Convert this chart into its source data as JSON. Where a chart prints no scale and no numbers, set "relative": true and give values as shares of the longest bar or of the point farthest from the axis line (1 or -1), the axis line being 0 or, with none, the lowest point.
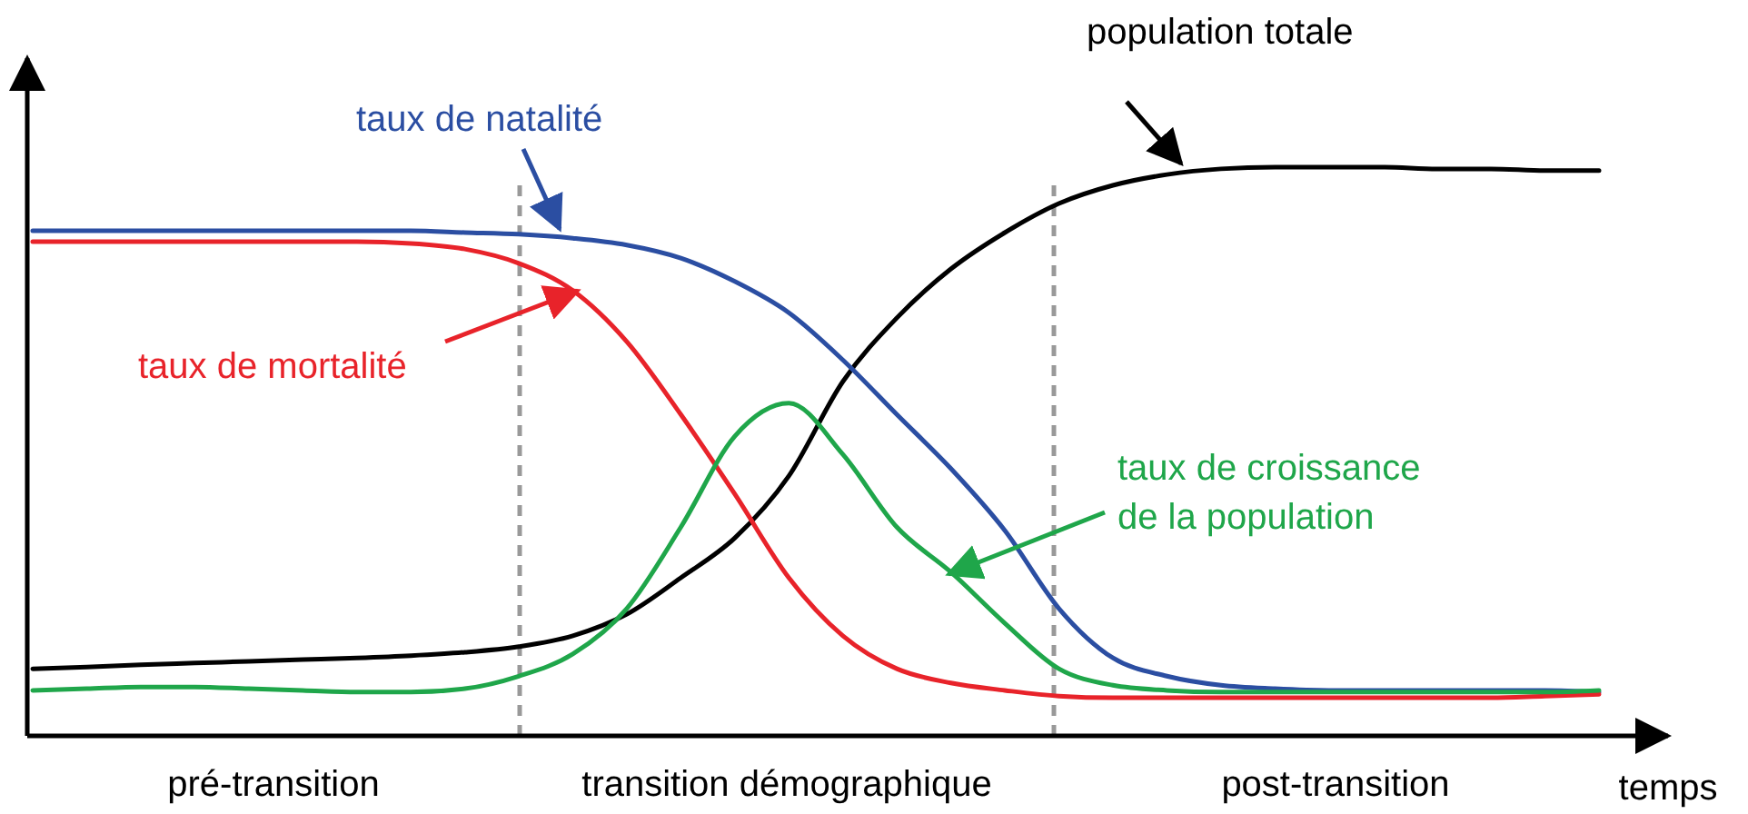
{
  "chart_data": {
    "type": "line",
    "relative": true,
    "xlabel": "temps",
    "line_style": "solid",
    "marker": "none",
    "grid": false,
    "categories": [
      null,
      null,
      null,
      null,
      null,
      null,
      null,
      null,
      null,
      null,
      null,
      null,
      null,
      null,
      null,
      null,
      null,
      null,
      null,
      null,
      null,
      null,
      null,
      null,
      null,
      null,
      null,
      null,
      null,
      null
    ],
    "series": [
      {
        "name": "population totale",
        "color": "#000000",
        "values": [
          0.118,
          0.121,
          0.125,
          0.128,
          0.131,
          0.134,
          0.137,
          0.141,
          0.147,
          0.157,
          0.176,
          0.214,
          0.278,
          0.348,
          0.457,
          0.623,
          0.735,
          0.821,
          0.885,
          0.936,
          0.968,
          0.987,
          0.997,
          1.0,
          1.0,
          1.0,
          0.997,
          0.997,
          0.994,
          0.994
        ]
      },
      {
        "name": "taux de natalité",
        "color": "#2b4ea2",
        "values": [
          0.888,
          0.888,
          0.888,
          0.888,
          0.888,
          0.888,
          0.888,
          0.888,
          0.885,
          0.882,
          0.875,
          0.863,
          0.84,
          0.799,
          0.744,
          0.661,
          0.565,
          0.47,
          0.361,
          0.224,
          0.137,
          0.105,
          0.089,
          0.083,
          0.08,
          0.08,
          0.08,
          0.08,
          0.08,
          0.077
        ]
      },
      {
        "name": "taux de mortalité",
        "color": "#e8232a",
        "values": [
          0.869,
          0.869,
          0.869,
          0.869,
          0.869,
          0.869,
          0.869,
          0.866,
          0.856,
          0.831,
          0.783,
          0.693,
          0.565,
          0.425,
          0.278,
          0.176,
          0.118,
          0.093,
          0.08,
          0.07,
          0.067,
          0.067,
          0.067,
          0.067,
          0.067,
          0.067,
          0.067,
          0.067,
          0.07,
          0.073
        ]
      },
      {
        "name": "taux de croissance de la population",
        "color": "#1fa64a",
        "values": [
          0.08,
          0.083,
          0.086,
          0.086,
          0.083,
          0.08,
          0.077,
          0.077,
          0.083,
          0.105,
          0.144,
          0.224,
          0.367,
          0.527,
          0.585,
          0.495,
          0.367,
          0.288,
          0.198,
          0.118,
          0.089,
          0.08,
          0.077,
          0.077,
          0.077,
          0.077,
          0.077,
          0.077,
          0.077,
          0.08
        ]
      }
    ],
    "annotations": [
      "pré-transition",
      "transition démographique",
      "post-transition"
    ]
  }
}
